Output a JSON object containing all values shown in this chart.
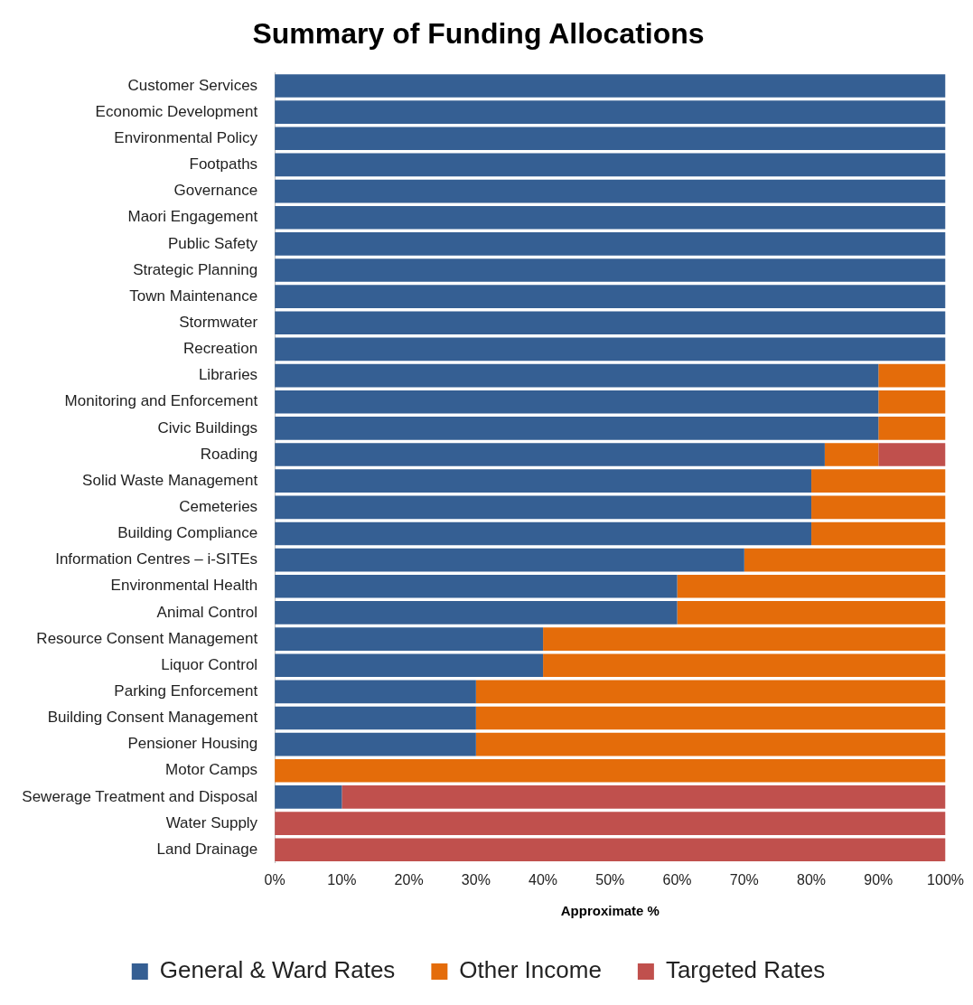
{
  "chart_data": {
    "type": "bar",
    "orientation": "horizontal",
    "stacked": true,
    "title": "Summary of Funding Allocations",
    "xlabel": "Approximate %",
    "categories": [
      "Customer Services",
      "Economic Development",
      "Environmental Policy",
      "Footpaths",
      "Governance",
      "Maori Engagement",
      "Public Safety",
      "Strategic Planning",
      "Town Maintenance",
      "Stormwater",
      "Recreation",
      "Libraries",
      "Monitoring and Enforcement",
      "Civic Buildings",
      "Roading",
      "Solid Waste Management",
      "Cemeteries",
      "Building Compliance",
      "Information Centres – i-SITEs",
      "Environmental Health",
      "Animal Control",
      "Resource Consent Management",
      "Liquor Control",
      "Parking Enforcement",
      "Building Consent Management",
      "Pensioner Housing",
      "Motor Camps",
      "Sewerage Treatment and Disposal",
      "Water Supply",
      "Land Drainage"
    ],
    "series": [
      {
        "name": "General & Ward Rates",
        "color": "#355f93",
        "values": [
          100,
          100,
          100,
          100,
          100,
          100,
          100,
          100,
          100,
          100,
          100,
          90,
          90,
          90,
          82,
          80,
          80,
          80,
          70,
          60,
          60,
          40,
          40,
          30,
          30,
          30,
          0,
          10,
          0,
          0
        ]
      },
      {
        "name": "Other Income",
        "color": "#e46c0a",
        "values": [
          0,
          0,
          0,
          0,
          0,
          0,
          0,
          0,
          0,
          0,
          0,
          10,
          10,
          10,
          8,
          20,
          20,
          20,
          30,
          40,
          40,
          60,
          60,
          70,
          70,
          70,
          100,
          0,
          0,
          0
        ]
      },
      {
        "name": "Targeted Rates",
        "color": "#c0504d",
        "values": [
          0,
          0,
          0,
          0,
          0,
          0,
          0,
          0,
          0,
          0,
          0,
          0,
          0,
          0,
          10,
          0,
          0,
          0,
          0,
          0,
          0,
          0,
          0,
          0,
          0,
          0,
          0,
          90,
          100,
          100
        ]
      }
    ],
    "xlim": [
      0,
      100
    ],
    "xticks": [
      {
        "value": 0,
        "label": "0%"
      },
      {
        "value": 10,
        "label": "10%"
      },
      {
        "value": 20,
        "label": "20%"
      },
      {
        "value": 30,
        "label": "30%"
      },
      {
        "value": 40,
        "label": "40%"
      },
      {
        "value": 50,
        "label": "50%"
      },
      {
        "value": 60,
        "label": "60%"
      },
      {
        "value": 70,
        "label": "70%"
      },
      {
        "value": 80,
        "label": "80%"
      },
      {
        "value": 90,
        "label": "90%"
      },
      {
        "value": 100,
        "label": "100%"
      }
    ],
    "grid": false,
    "legend": "bottom"
  }
}
